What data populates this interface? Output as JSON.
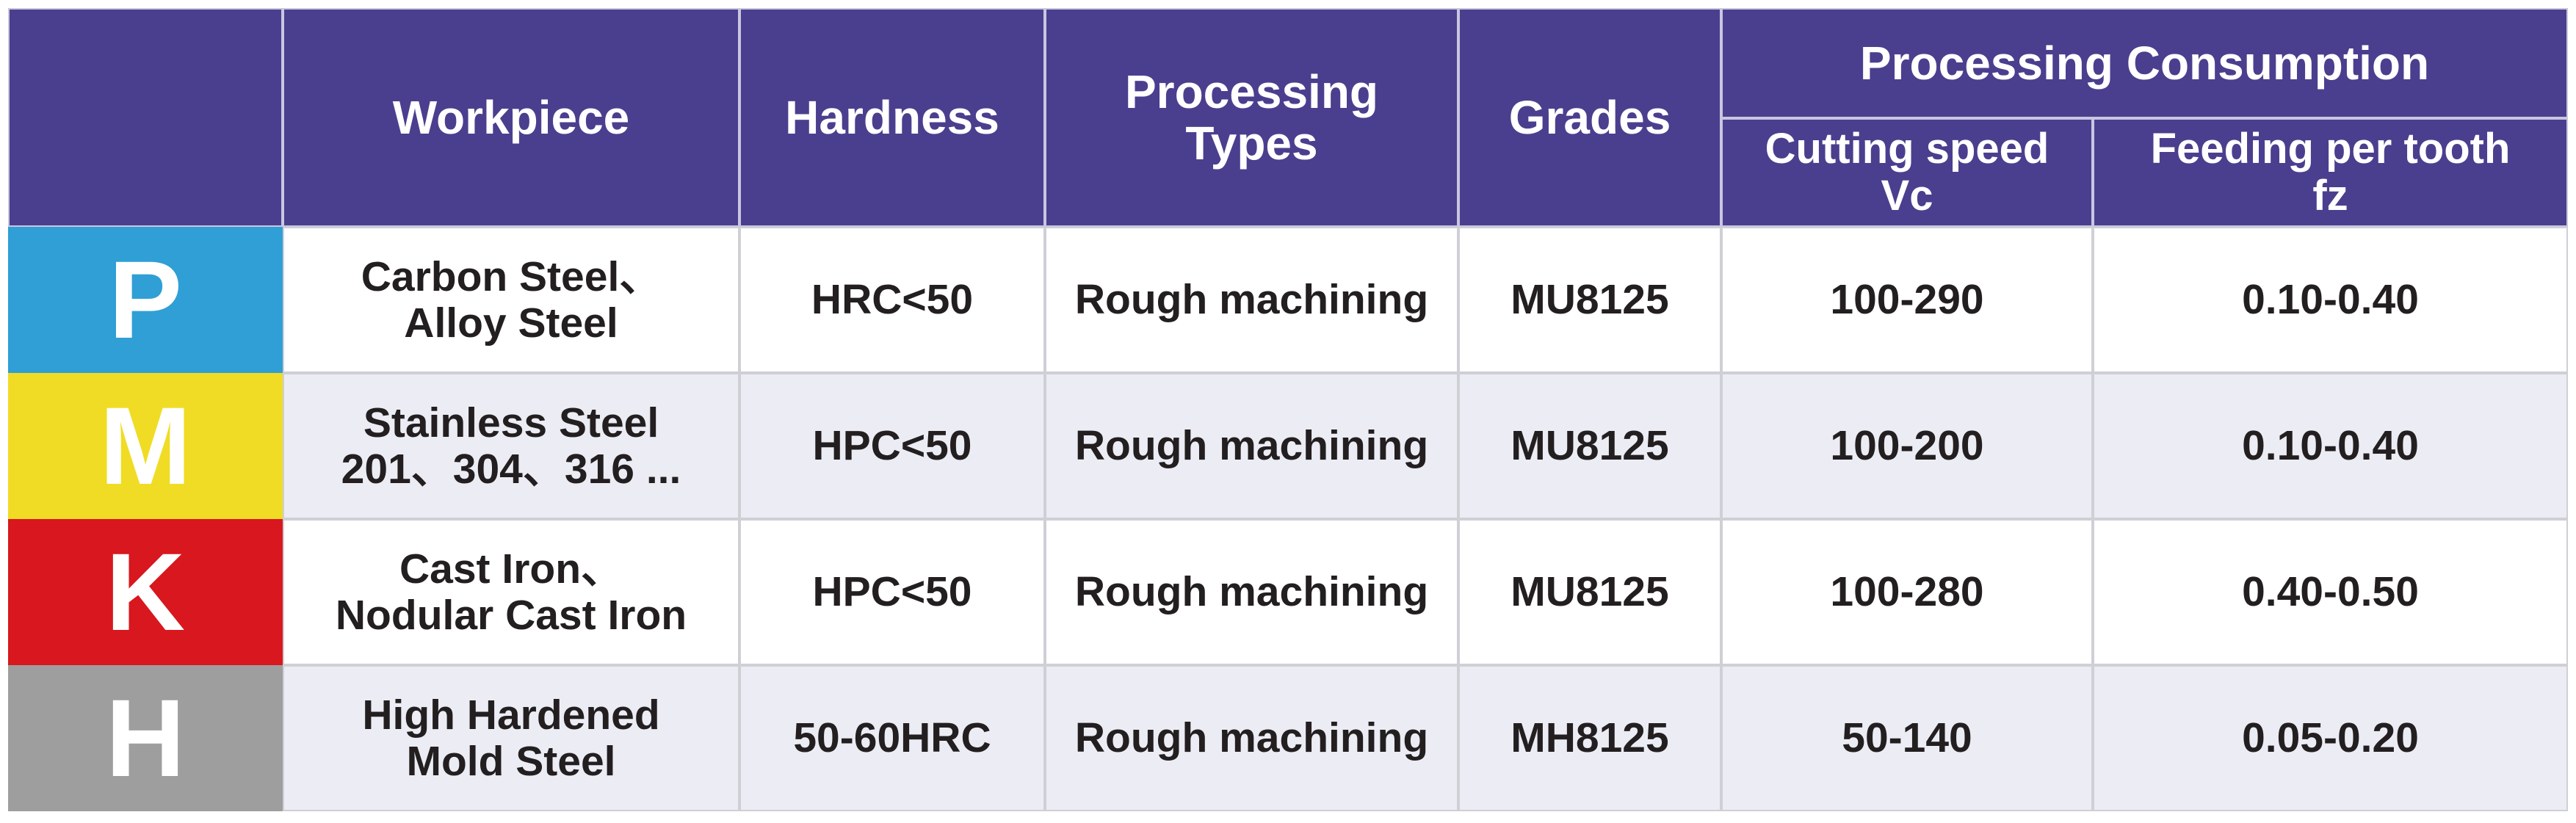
{
  "table": {
    "header": {
      "workpiece": "Workpiece",
      "hardness": "Hardness",
      "types": [
        "Processing",
        "Types"
      ],
      "grades": "Grades",
      "consumption": "Processing Consumption",
      "speed": [
        "Cutting speed",
        "Vc"
      ],
      "feed": [
        "Feeding per tooth",
        "fz"
      ]
    },
    "rows": [
      {
        "class": "P",
        "color": "#2f9fd6",
        "workpiece": [
          "Carbon Steel、",
          "Alloy Steel"
        ],
        "hardness": "HRC<50",
        "type": "Rough machining",
        "grade": "MU8125",
        "speed": "100-290",
        "feed": "0.10-0.40"
      },
      {
        "class": "M",
        "color": "#f0dc24",
        "workpiece": [
          "Stainless Steel",
          "201、304、316 ..."
        ],
        "hardness": "HPC<50",
        "type": "Rough machining",
        "grade": "MU8125",
        "speed": "100-200",
        "feed": "0.10-0.40"
      },
      {
        "class": "K",
        "color": "#d8171e",
        "workpiece": [
          "Cast Iron、",
          "Nodular Cast Iron"
        ],
        "hardness": "HPC<50",
        "type": "Rough machining",
        "grade": "MU8125",
        "speed": "100-280",
        "feed": "0.40-0.50"
      },
      {
        "class": "H",
        "color": "#9e9e9e",
        "workpiece": [
          "High Hardened",
          "Mold Steel"
        ],
        "hardness": "50-60HRC",
        "type": "Rough machining",
        "grade": "MH8125",
        "speed": "50-140",
        "feed": "0.05-0.20"
      }
    ]
  }
}
